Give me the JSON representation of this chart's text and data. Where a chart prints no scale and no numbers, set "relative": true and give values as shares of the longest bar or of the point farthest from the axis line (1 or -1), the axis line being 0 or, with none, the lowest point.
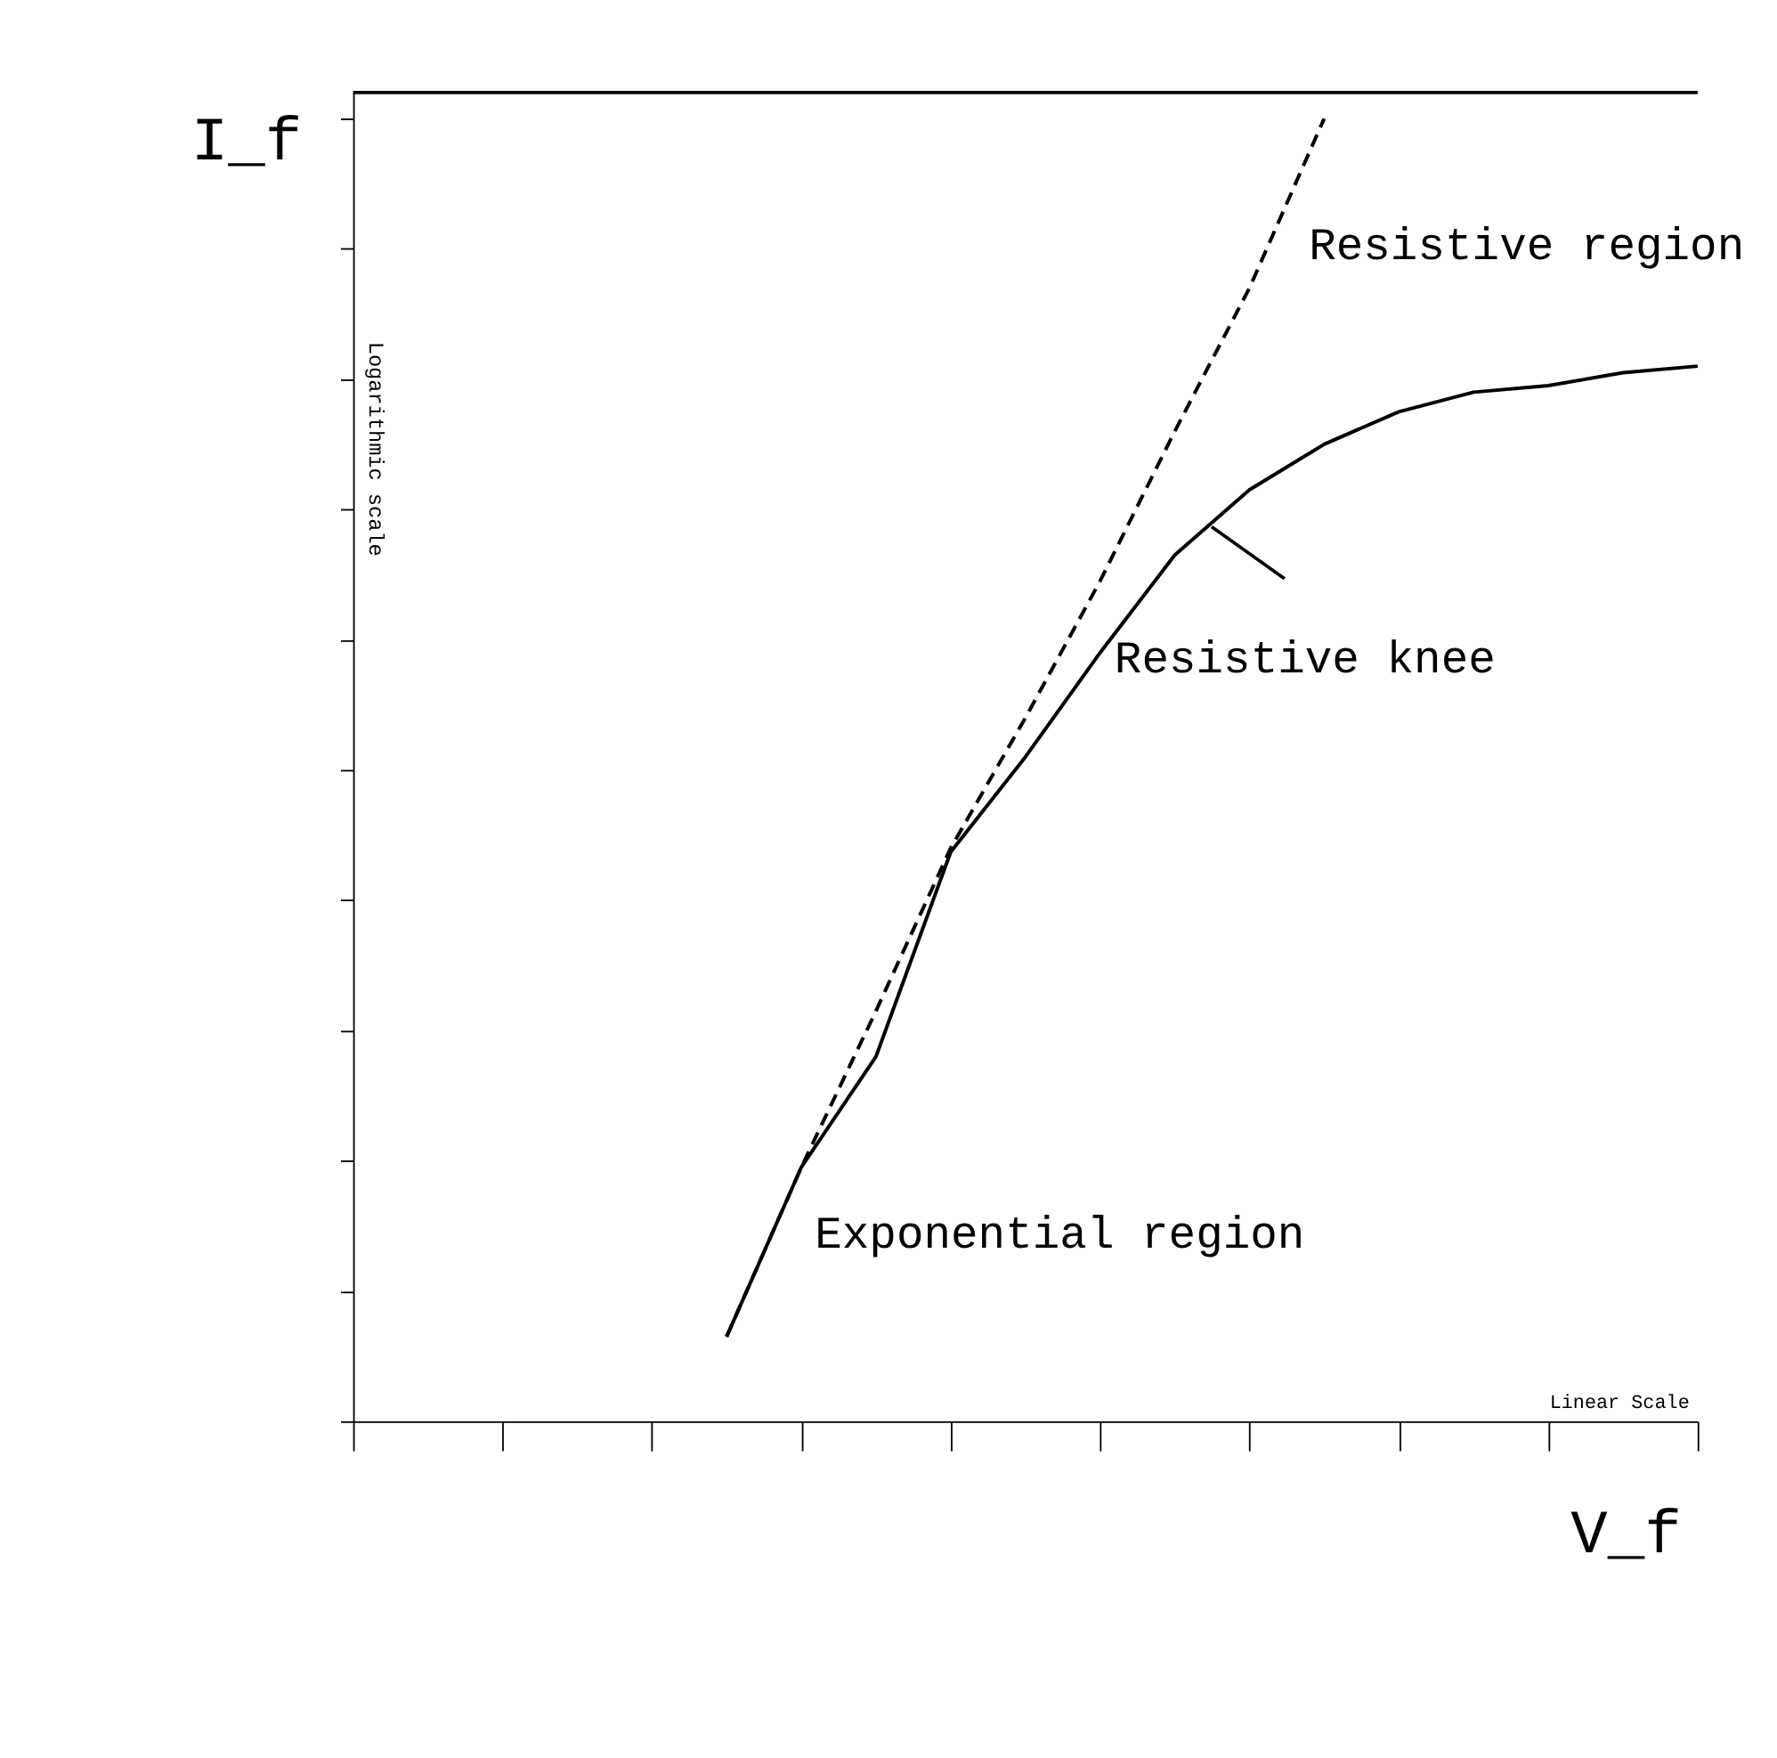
{
  "chart_data": {
    "type": "line",
    "relative": true,
    "xlabel": "V_f",
    "ylabel": "I_f",
    "categories": [
      null,
      null,
      null,
      null,
      null,
      null,
      null,
      null,
      null,
      null,
      null,
      null,
      null,
      null,
      null,
      null,
      null,
      null,
      null
    ],
    "series": [
      {
        "color": "#000000",
        "line_style": "solid",
        "values": [
          null,
          null,
          null,
          null,
          null,
          0.065,
          0.195,
          0.28,
          0.437,
          0.51,
          0.59,
          0.665,
          0.715,
          0.75,
          0.775,
          0.79,
          0.795,
          0.805,
          0.81
        ]
      },
      {
        "color": "#000000",
        "line_style": "dashed",
        "values": [
          null,
          null,
          null,
          null,
          null,
          0.065,
          0.195,
          0.315,
          0.44,
          0.54,
          0.645,
          0.76,
          0.87,
          1,
          null,
          null,
          null,
          null,
          null
        ]
      }
    ],
    "annotations": [
      "Resistive region",
      "Resistive knee",
      "Exponential region",
      "Logarithmic scale",
      "Linear Scale"
    ],
    "grid": false,
    "marker": "none"
  }
}
